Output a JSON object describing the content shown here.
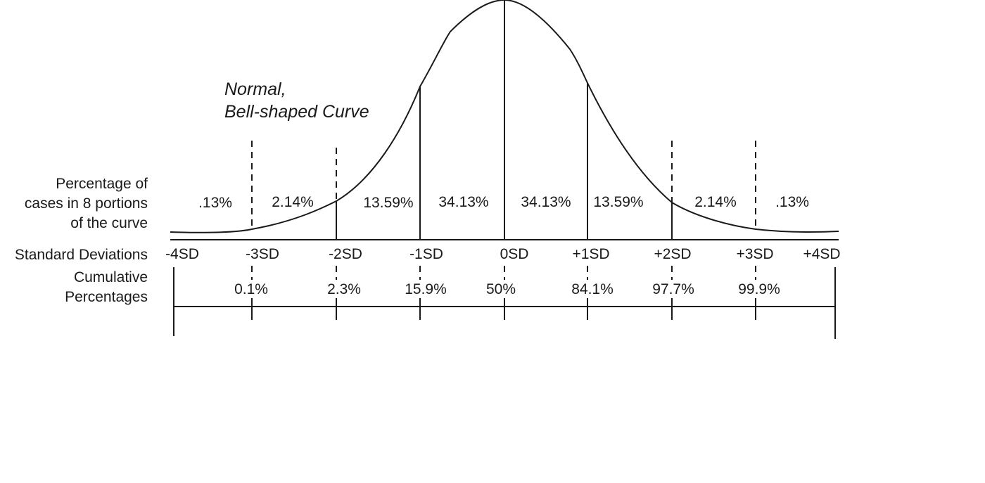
{
  "title_lines": [
    "Normal,",
    "Bell-shaped Curve"
  ],
  "row_labels": {
    "percentage": [
      "Percentage of",
      "cases in 8 portions",
      "of the curve"
    ],
    "sd": "Standard Deviations",
    "cumulative": [
      "Cumulative",
      "Percentages"
    ]
  },
  "sd_ticks": [
    "-4SD",
    "-3SD",
    "-2SD",
    "-1SD",
    "0SD",
    "+1SD",
    "+2SD",
    "+3SD",
    "+4SD"
  ],
  "portions": [
    ".13%",
    "2.14%",
    "13.59%",
    "34.13%",
    "34.13%",
    "13.59%",
    "2.14%",
    ".13%"
  ],
  "cumulative": [
    "0.1%",
    "2.3%",
    "15.9%",
    "50%",
    "84.1%",
    "97.7%",
    "99.9%"
  ]
}
